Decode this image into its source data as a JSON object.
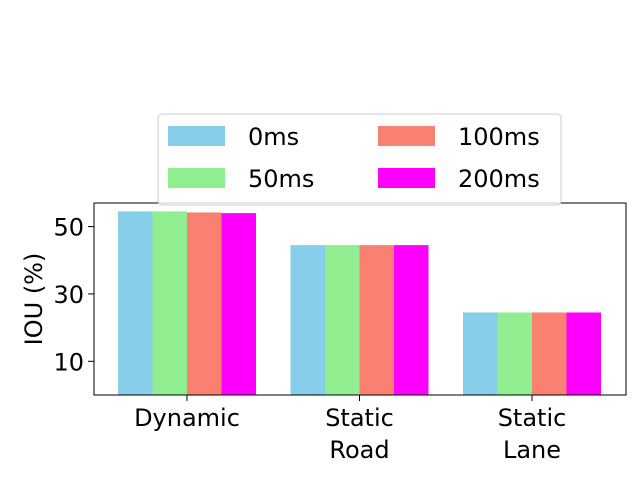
{
  "chart_data": {
    "type": "bar",
    "categories": [
      [
        "Dynamic"
      ],
      [
        "Static",
        "Road"
      ],
      [
        "Static",
        "Lane"
      ]
    ],
    "series": [
      {
        "name": "0ms",
        "color": "#87ceeb",
        "values": [
          54.5,
          44.5,
          24.5
        ]
      },
      {
        "name": "50ms",
        "color": "#90ee90",
        "values": [
          54.5,
          44.5,
          24.5
        ]
      },
      {
        "name": "100ms",
        "color": "#fa8072",
        "values": [
          54.2,
          44.5,
          24.5
        ]
      },
      {
        "name": "200ms",
        "color": "#ff00ff",
        "values": [
          54.0,
          44.5,
          24.5
        ]
      }
    ],
    "ylabel": "IOU (%)",
    "yticks": [
      10,
      30,
      50
    ],
    "ylim": [
      0,
      57
    ],
    "grid": false,
    "legend": {
      "position": "top-center",
      "columns": 2
    }
  }
}
